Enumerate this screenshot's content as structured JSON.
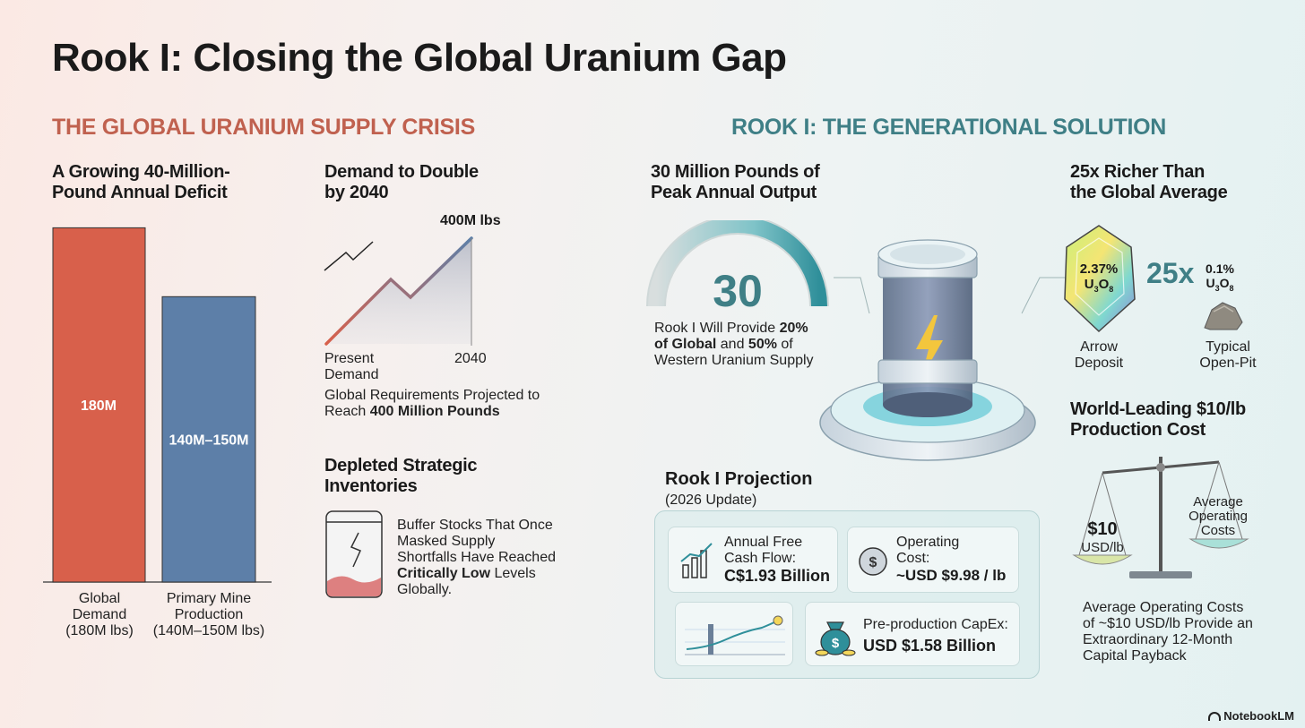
{
  "title": "Rook I: Closing the Global Uranium Gap",
  "left_section": {
    "heading": "THE GLOBAL URANIUM SUPPLY CRISIS",
    "deficit": {
      "title": "A Growing 40-Million-Pound Annual Deficit",
      "chart_data": {
        "type": "bar",
        "categories": [
          "Global Demand (180M lbs)",
          "Primary Mine Production (140M–150M lbs)"
        ],
        "values": [
          180,
          145
        ],
        "data_labels": [
          "180M",
          "140M–150M"
        ],
        "colors": [
          "#d8604b",
          "#5d7fa8"
        ]
      },
      "bar_labels": {
        "global": [
          "Global",
          "Demand",
          "(180M lbs)"
        ],
        "primary": [
          "Primary Mine",
          "Production",
          "(140M–150M lbs)"
        ]
      }
    },
    "demand": {
      "title": [
        "Demand to Double",
        "by 2040"
      ],
      "peak_label": "400M lbs",
      "x_start": [
        "Present",
        "Demand"
      ],
      "x_end": "2040",
      "caption_plain": "Global Requirements Projected to Reach ",
      "caption_bold": "400 Million Pounds"
    },
    "inventories": {
      "title": [
        "Depleted Strategic",
        "Inventories"
      ],
      "text_plain": "Buffer Stocks That Once Masked Supply Shortfalls Have Reached ",
      "text_bold": "Critically Low",
      "text_end": " Levels Globally."
    }
  },
  "right_section": {
    "heading": "ROOK I: THE GENERATIONAL SOLUTION",
    "output": {
      "title": [
        "30 Million Pounds of",
        "Peak Annual Output"
      ],
      "gauge_value": "30",
      "text": [
        "Rook I Will Provide ",
        "20%",
        " of Global",
        " and ",
        "50%",
        " of",
        "Western Uranium Supply"
      ]
    },
    "richer": {
      "title": [
        "25x Richer Than",
        "the Global Average"
      ],
      "arrow_grade": "2.37%",
      "arrow_formula": [
        "U",
        "3",
        "O",
        "8"
      ],
      "multiplier": "25x",
      "average_grade": "0.1%",
      "average_formula": [
        "U",
        "3",
        "O",
        "8"
      ],
      "arrow_label": [
        "Arrow",
        "Deposit"
      ],
      "openpit_label": [
        "Typical",
        "Open-Pit"
      ]
    },
    "cost": {
      "title": [
        "World-Leading $10/lb",
        "Production Cost"
      ],
      "scale_left_value": "$10",
      "scale_left_unit": "USD/lb",
      "scale_right": [
        "Average",
        "Operating",
        "Costs"
      ],
      "caption": [
        "Average Operating Costs",
        "of ~$10 USD/lb Provide an",
        "Extraordinary 12-Month",
        "Capital Payback"
      ]
    },
    "projection": {
      "title": "Rook I Projection",
      "subtitle": "(2026 Update)",
      "fcf_label": [
        "Annual Free",
        "Cash Flow:"
      ],
      "fcf_value": "C$1.93 Billion",
      "opcost_label": [
        "Operating",
        "Cost:"
      ],
      "opcost_value": "~USD $9.98 / lb",
      "capex_label": "Pre-production CapEx:",
      "capex_value": "USD $1.58 Billion"
    }
  },
  "brand": "NotebookLM",
  "colors": {
    "red": "#d8604b",
    "blue": "#5d7fa8",
    "teal": "#3f7f86",
    "left_heading": "#c0614f"
  }
}
